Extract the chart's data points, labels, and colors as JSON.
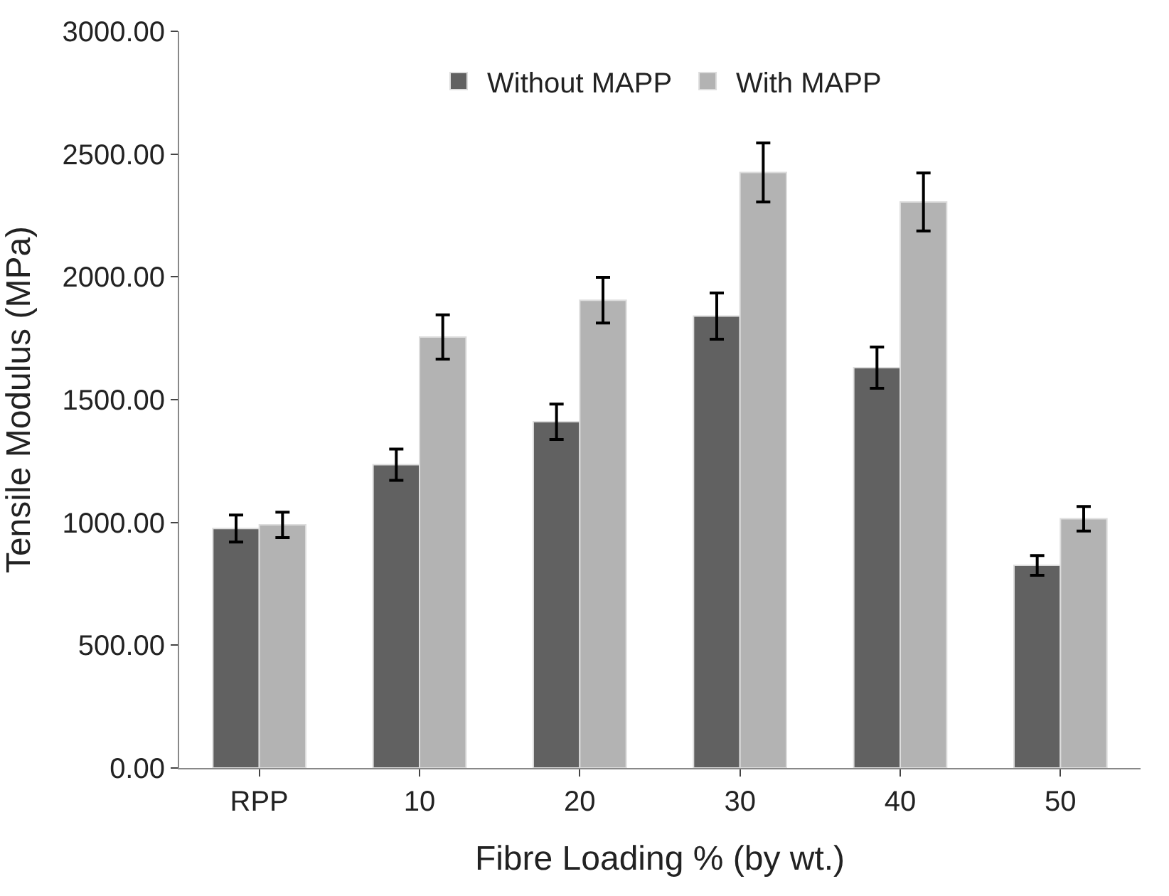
{
  "chart_data": {
    "type": "bar",
    "xlabel": "Fibre Loading % (by wt.)",
    "ylabel": "Tensile Modulus (MPa)",
    "categories": [
      "RPP",
      "10",
      "20",
      "30",
      "40",
      "50"
    ],
    "series": [
      {
        "name": "Without MAPP",
        "color": "#616161",
        "values": [
          975,
          1235,
          1410,
          1840,
          1630,
          825
        ],
        "errors": [
          55,
          64,
          72,
          94,
          84,
          40
        ]
      },
      {
        "name": "With MAPP",
        "color": "#b3b3b3",
        "values": [
          990,
          1755,
          1905,
          2425,
          2305,
          1015
        ],
        "errors": [
          52,
          90,
          93,
          120,
          118,
          50
        ]
      }
    ],
    "ylim": [
      0,
      3000
    ],
    "yticks": [
      {
        "value": 0,
        "label": "0.00"
      },
      {
        "value": 500,
        "label": "500.00"
      },
      {
        "value": 1000,
        "label": "1000.00"
      },
      {
        "value": 1500,
        "label": "1500.00"
      },
      {
        "value": 2000,
        "label": "2000.00"
      },
      {
        "value": 2500,
        "label": "2500.00"
      },
      {
        "value": 3000,
        "label": "3000.00"
      }
    ],
    "legend": "top"
  }
}
